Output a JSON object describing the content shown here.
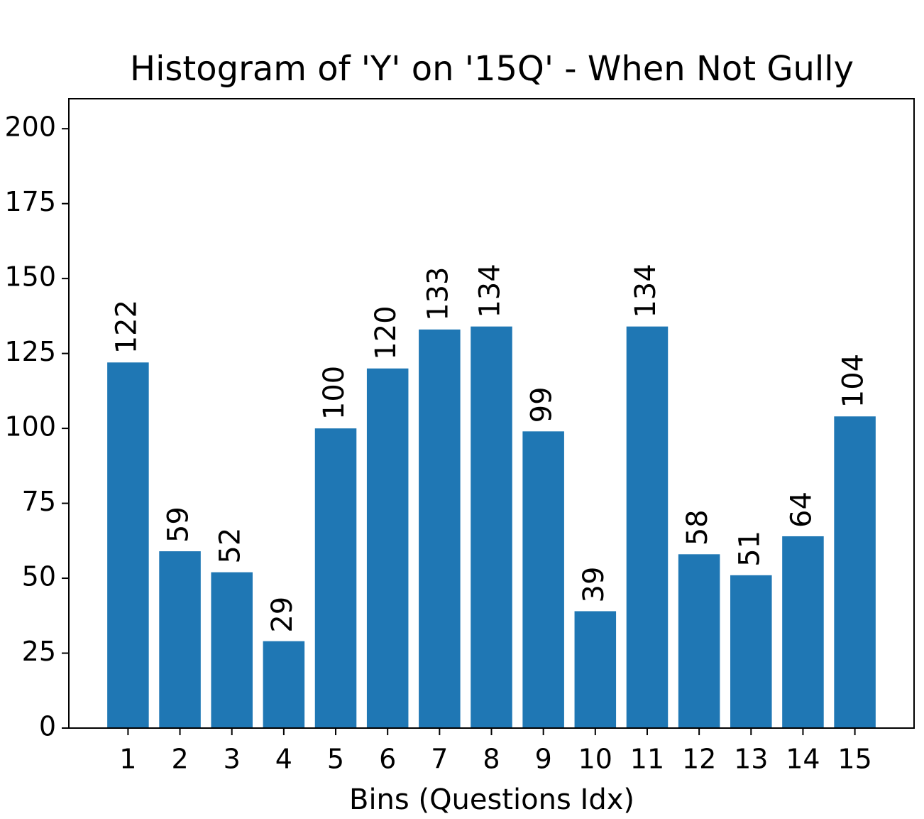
{
  "chart_data": {
    "type": "bar",
    "title": "Histogram of 'Y' on '15Q' - When Not Gully",
    "x_label": "Bins (Questions Idx)",
    "categories": [
      "1",
      "2",
      "3",
      "4",
      "5",
      "6",
      "7",
      "8",
      "9",
      "10",
      "11",
      "12",
      "13",
      "14",
      "15"
    ],
    "values": [
      122,
      59,
      52,
      29,
      100,
      120,
      133,
      134,
      99,
      39,
      134,
      58,
      51,
      64,
      104
    ],
    "color": "#1f77b4",
    "ylim": [
      0,
      210
    ],
    "yticks": [
      0,
      25,
      50,
      75,
      100,
      125,
      150,
      175,
      200
    ],
    "grid": false
  }
}
